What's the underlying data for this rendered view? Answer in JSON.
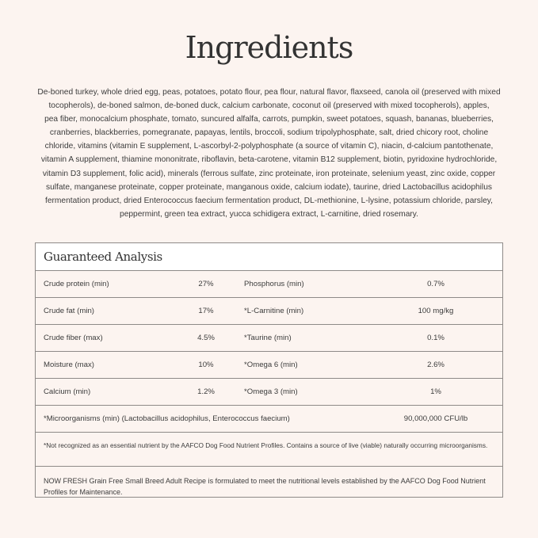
{
  "title": "Ingredients",
  "ingredients_lines": [
    "De-boned turkey, whole dried egg, peas, potatoes, potato flour, pea flour, natural flavor, flaxseed, canola oil (preserved with mixed",
    "tocopherols), de-boned salmon, de-boned duck, calcium carbonate, coconut oil (preserved with mixed tocopherols), apples,",
    "pea fiber, monocalcium phosphate, tomato, suncured alfalfa, carrots, pumpkin, sweet potatoes, squash, bananas, blueberries,",
    "cranberries, blackberries, pomegranate, papayas, lentils, broccoli, sodium tripolyphosphate, salt, dried chicory root, choline",
    "chloride, vitamins (vitamin E supplement, L-ascorbyl-2-polyphosphate (a source of vitamin C), niacin, d-calcium pantothenate,",
    "vitamin A supplement, thiamine mononitrate, riboflavin, beta-carotene, vitamin B12 supplement, biotin, pyridoxine hydrochloride,",
    "vitamin D3 supplement, folic acid), minerals (ferrous sulfate, zinc proteinate, iron proteinate, selenium yeast, zinc oxide, copper",
    "sulfate, manganese proteinate, copper proteinate, manganous oxide, calcium iodate), taurine, dried Lactobacillus acidophilus",
    "fermentation product, dried Enterococcus faecium fermentation product, DL-methionine, L-lysine, potassium chloride, parsley,",
    "peppermint, green tea extract, yucca schidigera extract, L-carnitine, dried rosemary."
  ],
  "analysis": {
    "title": "Guaranteed Analysis",
    "rows": [
      {
        "label1": "Crude protein (min)",
        "value1": "27%",
        "label2": "Phosphorus (min)",
        "value2": "0.7%"
      },
      {
        "label1": "Crude fat (min)",
        "value1": "17%",
        "label2": "*L-Carnitine (min)",
        "value2": "100 mg/kg"
      },
      {
        "label1": "Crude fiber (max)",
        "value1": "4.5%",
        "label2": "*Taurine (min)",
        "value2": "0.1%"
      },
      {
        "label1": "Moisture (max)",
        "value1": "10%",
        "label2": "*Omega 6 (min)",
        "value2": "2.6%"
      },
      {
        "label1": "Calcium (min)",
        "value1": "1.2%",
        "label2": "*Omega 3 (min)",
        "value2": "1%"
      }
    ],
    "micro_label": "*Microorganisms (min) (Lactobacillus acidophilus, Enterococcus faecium)",
    "micro_value": "90,000,000 CFU/lb",
    "footnote": "*Not recognized as an essential nutrient by the AAFCO Dog Food Nutrient Profiles. Contains a source of live (viable) naturally occurring microorganisms.",
    "statement": "NOW FRESH Grain Free Small Breed Adult Recipe is formulated to meet the nutritional levels established by the AAFCO Dog Food Nutrient Profiles for Maintenance."
  }
}
